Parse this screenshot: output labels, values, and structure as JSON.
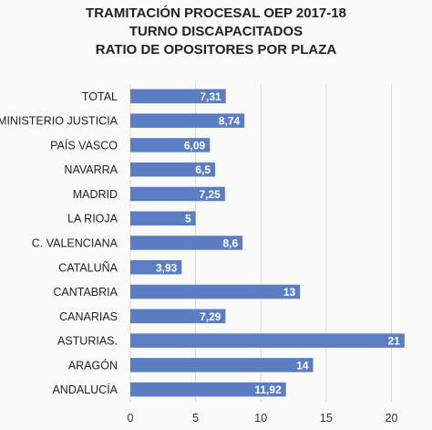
{
  "chart_data": {
    "type": "bar",
    "orientation": "horizontal",
    "title_lines": [
      "TRAMITACIÓN PROCESAL OEP 2017-18",
      "TURNO DISCAPACITADOS",
      "RATIO DE OPOSITORES POR PLAZA"
    ],
    "categories": [
      "TOTAL",
      "MINISTERIO JUSTICIA",
      "PAÍS VASCO",
      "NAVARRA",
      "MADRID",
      "LA RIOJA",
      "C. VALENCIANA",
      "CATALUÑA",
      "CANTABRIA",
      "CANARIAS",
      "ASTURIAS.",
      "ARAGÓN",
      "ANDALUCÍA"
    ],
    "values": [
      7.31,
      8.74,
      6.09,
      6.5,
      7.25,
      5,
      8.6,
      3.93,
      13,
      7.29,
      21,
      14,
      11.92
    ],
    "data_labels": [
      "7,31",
      "8,74",
      "6,09",
      "6,5",
      "7,25",
      "5",
      "8,6",
      "3,93",
      "13",
      "7,29",
      "21",
      "14",
      "11,92"
    ],
    "xlim": [
      0,
      21.5
    ],
    "xticks": [
      0,
      5,
      10,
      15,
      20
    ],
    "grid": true,
    "bar_color": "#5b7ec2",
    "grid_color": "#d9d9d9"
  }
}
